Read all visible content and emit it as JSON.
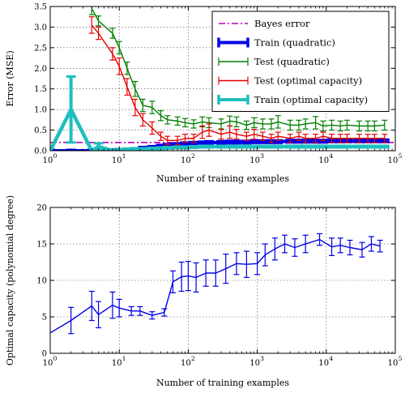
{
  "chart_data": [
    {
      "type": "line",
      "title": "",
      "xlabel": "Number of training examples",
      "ylabel": "Error (MSE)",
      "xscale": "log",
      "xlim": [
        1,
        100000
      ],
      "ylim": [
        0,
        3.5
      ],
      "x_ticks": [
        1,
        10,
        100,
        1000,
        10000,
        100000
      ],
      "x_tick_labels": [
        "10",
        "10",
        "10",
        "10",
        "10",
        "10"
      ],
      "x_tick_exponents": [
        "0",
        "1",
        "2",
        "3",
        "4",
        "5"
      ],
      "y_ticks": [
        0,
        0.5,
        1,
        1.5,
        2,
        2.5,
        3,
        3.5
      ],
      "y_tick_labels": [
        "0.0",
        "0.5",
        "1.0",
        "1.5",
        "2.0",
        "2.5",
        "3.0",
        "3.5"
      ],
      "grid": true,
      "legend_position": "top-right",
      "bayes_error": 0.2,
      "series": [
        {
          "name": "Bayes error",
          "color": "#bf00bf",
          "style": "dashdot",
          "x": [
            1,
            100000
          ],
          "y": [
            0.2,
            0.2
          ]
        },
        {
          "name": "Train (quadratic)",
          "color": "#0000e6",
          "style": "thick",
          "x": [
            1,
            2,
            4,
            5,
            8,
            10,
            13,
            17,
            22,
            30,
            40,
            50,
            70,
            90,
            120,
            160,
            200,
            300,
            400,
            500,
            700,
            900,
            1200,
            1600,
            2000,
            3000,
            4000,
            5000,
            7000,
            9000,
            12000,
            16000,
            20000,
            30000,
            40000,
            50000,
            70000
          ],
          "y": [
            0.0,
            0.0,
            0.0,
            0.0,
            0.01,
            0.02,
            0.03,
            0.04,
            0.06,
            0.08,
            0.11,
            0.13,
            0.15,
            0.17,
            0.18,
            0.19,
            0.2,
            0.2,
            0.21,
            0.21,
            0.21,
            0.22,
            0.22,
            0.22,
            0.22,
            0.23,
            0.23,
            0.23,
            0.23,
            0.23,
            0.24,
            0.24,
            0.24,
            0.24,
            0.24,
            0.24,
            0.24
          ],
          "err": [
            0.02,
            0.02,
            0.02,
            0.02,
            0.02,
            0.02,
            0.02,
            0.02,
            0.03,
            0.03,
            0.03,
            0.03,
            0.03,
            0.03,
            0.03,
            0.03,
            0.03,
            0.03,
            0.03,
            0.03,
            0.03,
            0.03,
            0.03,
            0.03,
            0.03,
            0.03,
            0.03,
            0.03,
            0.03,
            0.03,
            0.03,
            0.03,
            0.03,
            0.03,
            0.03,
            0.03,
            0.03
          ]
        },
        {
          "name": "Test (quadratic)",
          "color": "#007f00",
          "style": "errorbar",
          "x": [
            4,
            5,
            8,
            10,
            13,
            17,
            22,
            30,
            40,
            50,
            70,
            90,
            120,
            160,
            200,
            300,
            400,
            500,
            700,
            900,
            1200,
            1600,
            2000,
            3000,
            4000,
            5000,
            7000,
            9000,
            12000,
            16000,
            20000,
            30000,
            40000,
            50000,
            70000
          ],
          "y": [
            3.45,
            3.15,
            2.85,
            2.5,
            2.0,
            1.5,
            1.1,
            1.05,
            0.85,
            0.75,
            0.72,
            0.68,
            0.65,
            0.7,
            0.68,
            0.65,
            0.72,
            0.7,
            0.62,
            0.68,
            0.65,
            0.65,
            0.7,
            0.62,
            0.62,
            0.65,
            0.68,
            0.6,
            0.62,
            0.6,
            0.62,
            0.6,
            0.6,
            0.6,
            0.62
          ],
          "err": [
            0.15,
            0.12,
            0.12,
            0.15,
            0.15,
            0.18,
            0.15,
            0.15,
            0.12,
            0.1,
            0.1,
            0.1,
            0.1,
            0.12,
            0.12,
            0.12,
            0.12,
            0.12,
            0.1,
            0.12,
            0.12,
            0.12,
            0.15,
            0.12,
            0.12,
            0.12,
            0.15,
            0.12,
            0.12,
            0.12,
            0.12,
            0.12,
            0.12,
            0.12,
            0.12
          ]
        },
        {
          "name": "Test (optimal capacity)",
          "color": "#e60000",
          "style": "errorbar",
          "x": [
            4,
            5,
            8,
            10,
            13,
            17,
            22,
            30,
            40,
            50,
            70,
            90,
            120,
            160,
            200,
            300,
            400,
            500,
            700,
            900,
            1200,
            1600,
            2000,
            3000,
            4000,
            5000,
            7000,
            9000,
            12000,
            16000,
            20000,
            30000,
            40000,
            50000,
            70000
          ],
          "y": [
            3.05,
            2.85,
            2.35,
            2.05,
            1.55,
            1.05,
            0.75,
            0.55,
            0.35,
            0.25,
            0.25,
            0.3,
            0.3,
            0.45,
            0.5,
            0.4,
            0.45,
            0.4,
            0.35,
            0.4,
            0.35,
            0.3,
            0.35,
            0.3,
            0.35,
            0.3,
            0.3,
            0.35,
            0.3,
            0.3,
            0.3,
            0.3,
            0.3,
            0.3,
            0.3
          ],
          "err": [
            0.2,
            0.15,
            0.15,
            0.2,
            0.2,
            0.2,
            0.15,
            0.15,
            0.1,
            0.1,
            0.1,
            0.1,
            0.1,
            0.15,
            0.15,
            0.12,
            0.15,
            0.12,
            0.1,
            0.12,
            0.1,
            0.1,
            0.1,
            0.1,
            0.1,
            0.1,
            0.1,
            0.1,
            0.1,
            0.1,
            0.1,
            0.1,
            0.1,
            0.1,
            0.1
          ]
        },
        {
          "name": "Train (optimal capacity)",
          "color": "#1fbfbf",
          "style": "thick",
          "x": [
            1,
            2,
            4,
            5,
            8,
            10,
            13,
            17,
            22,
            30,
            40,
            50,
            70,
            90,
            120,
            160,
            200,
            300,
            400,
            500,
            700,
            900,
            1200,
            1600,
            2000,
            3000,
            4000,
            5000,
            7000,
            9000,
            12000,
            16000,
            20000,
            30000,
            40000,
            50000,
            70000
          ],
          "y": [
            0.0,
            1.0,
            0.0,
            0.1,
            0.0,
            0.02,
            0.03,
            0.04,
            0.04,
            0.05,
            0.06,
            0.07,
            0.08,
            0.08,
            0.09,
            0.1,
            0.1,
            0.1,
            0.1,
            0.1,
            0.1,
            0.1,
            0.1,
            0.1,
            0.1,
            0.1,
            0.1,
            0.1,
            0.1,
            0.1,
            0.1,
            0.1,
            0.1,
            0.1,
            0.1,
            0.1,
            0.1
          ],
          "err": [
            0.0,
            0.8,
            0.0,
            0.08,
            0.02,
            0.02,
            0.02,
            0.02,
            0.02,
            0.02,
            0.02,
            0.02,
            0.02,
            0.02,
            0.02,
            0.02,
            0.02,
            0.02,
            0.02,
            0.02,
            0.02,
            0.02,
            0.02,
            0.02,
            0.02,
            0.02,
            0.02,
            0.02,
            0.02,
            0.02,
            0.02,
            0.02,
            0.02,
            0.02,
            0.02,
            0.02,
            0.02
          ]
        }
      ]
    },
    {
      "type": "line",
      "title": "",
      "xlabel": "Number of training examples",
      "ylabel": "Optimal capacity (polynomial degree)",
      "xscale": "log",
      "xlim": [
        1,
        100000
      ],
      "ylim": [
        0,
        20
      ],
      "x_ticks": [
        1,
        10,
        100,
        1000,
        10000,
        100000
      ],
      "x_tick_labels": [
        "10",
        "10",
        "10",
        "10",
        "10",
        "10"
      ],
      "x_tick_exponents": [
        "0",
        "1",
        "2",
        "3",
        "4",
        "5"
      ],
      "y_ticks": [
        0,
        5,
        10,
        15,
        20
      ],
      "y_tick_labels": [
        "0",
        "5",
        "10",
        "15",
        "20"
      ],
      "grid": true,
      "series": [
        {
          "name": "",
          "color": "#0000e6",
          "style": "errorbar",
          "x": [
            1,
            2,
            4,
            5,
            8,
            10,
            15,
            20,
            30,
            45,
            60,
            80,
            100,
            130,
            180,
            250,
            350,
            500,
            700,
            1000,
            1300,
            1800,
            2500,
            3500,
            5000,
            8000,
            12000,
            16000,
            22000,
            33000,
            45000,
            60000
          ],
          "y": [
            2.8,
            4.5,
            6.5,
            5.3,
            6.6,
            6.2,
            5.8,
            5.8,
            5.2,
            5.6,
            9.8,
            10.5,
            10.6,
            10.4,
            11.0,
            11.0,
            11.6,
            12.3,
            12.2,
            12.3,
            13.5,
            14.3,
            15.0,
            14.5,
            15.0,
            15.6,
            14.6,
            14.8,
            14.5,
            14.2,
            15.0,
            14.7
          ],
          "err": [
            0.0,
            1.8,
            2.0,
            1.8,
            1.8,
            1.2,
            0.6,
            0.6,
            0.5,
            0.5,
            1.5,
            2.0,
            2.0,
            2.0,
            1.8,
            1.8,
            2.0,
            1.5,
            1.8,
            1.5,
            1.5,
            1.5,
            1.2,
            1.2,
            1.2,
            0.8,
            1.2,
            1.0,
            1.0,
            1.0,
            1.0,
            0.8
          ]
        }
      ]
    }
  ]
}
